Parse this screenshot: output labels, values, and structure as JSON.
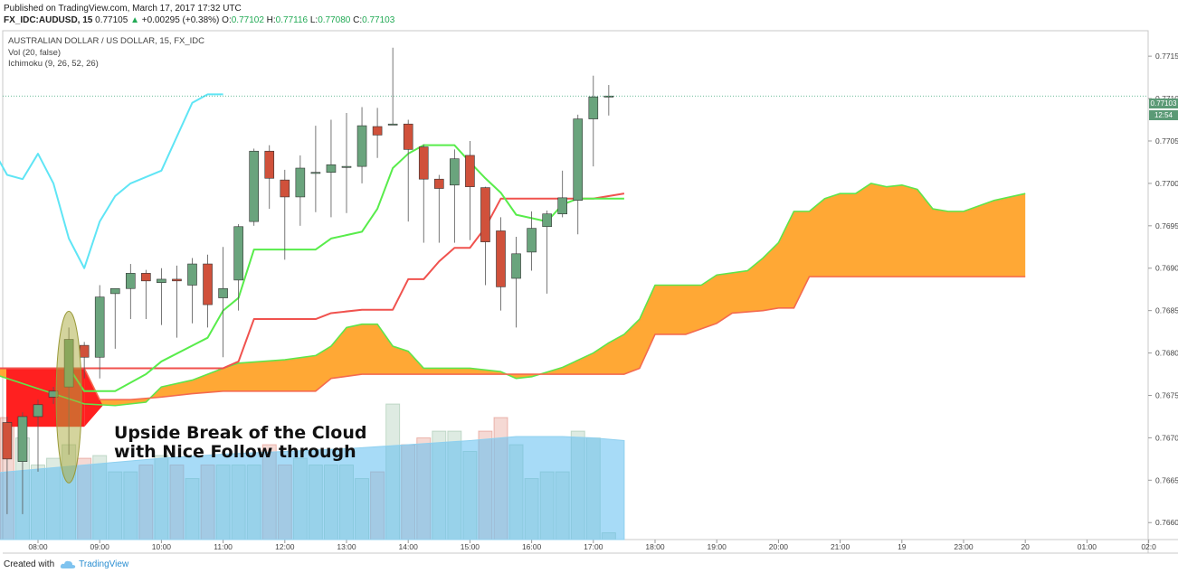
{
  "header": {
    "published": "Published on TradingView.com, March 17, 2017 17:32 UTC",
    "symbol": "FX_IDC:AUDUSD, 15",
    "last": "0.77105",
    "change_arrow": "▲",
    "change": "+0.00295 (+0.38%)",
    "o_label": "O:",
    "o": "0.77102",
    "h_label": "H:",
    "h": "0.77116",
    "l_label": "L:",
    "l": "0.77080",
    "c_label": "C:",
    "c": "0.77103"
  },
  "legend": {
    "title": "AUSTRALIAN DOLLAR / US DOLLAR, 15, FX_IDC",
    "vol": "Vol (20, false)",
    "ichimoku": "Ichimoku (9, 26, 52, 26)"
  },
  "annotation": [
    "Upside Break of the Cloud",
    "with Nice Follow through"
  ],
  "price_tag": {
    "value": "0.77103",
    "timer": "12:54"
  },
  "footer": {
    "created_with": "Created with",
    "brand": "TradingView",
    "logo_icon": "tradingview-cloud-icon"
  },
  "colors": {
    "bull": "#6aa47d",
    "bear": "#d0513b",
    "tenkan": "#58ec4b",
    "kijun": "#f0524e",
    "chikou": "#5fe5f5",
    "cloud_bull": "#ffa32a",
    "cloud_bear": "#ff2020",
    "vol_ma": "#8fd0ef",
    "price_line": "#3aa377"
  },
  "chart_data": {
    "type": "candlestick",
    "title": "AUSTRALIAN DOLLAR / US DOLLAR, 15, FX_IDC",
    "ylim": [
      0.7658,
      0.7718
    ],
    "y_ticks": [
      "0.77150",
      "0.77100",
      "0.77050",
      "0.77000",
      "0.76950",
      "0.76900",
      "0.76850",
      "0.76800",
      "0.76750",
      "0.76700",
      "0.76650",
      "0.76600"
    ],
    "x_ticks": [
      "08:00",
      "09:00",
      "10:00",
      "11:00",
      "12:00",
      "13:00",
      "14:00",
      "15:00",
      "16:00",
      "17:00",
      "18:00",
      "19:00",
      "20:00",
      "21:00",
      "19",
      "23:00",
      "20",
      "01:00",
      "02:0"
    ],
    "x_tick_hours": [
      8,
      9,
      10,
      11,
      12,
      13,
      14,
      15,
      16,
      17,
      18,
      19,
      20,
      21,
      22,
      23,
      24,
      25,
      26
    ],
    "candles": [
      {
        "t": 7.25,
        "o": 0.76716,
        "h": 0.76735,
        "l": 0.7668,
        "c": 0.76724
      },
      {
        "t": 7.5,
        "o": 0.76718,
        "h": 0.76725,
        "l": 0.7661,
        "c": 0.76675
      },
      {
        "t": 7.75,
        "o": 0.76672,
        "h": 0.7673,
        "l": 0.7661,
        "c": 0.76725
      },
      {
        "t": 8.0,
        "o": 0.76725,
        "h": 0.76745,
        "l": 0.7666,
        "c": 0.76739
      },
      {
        "t": 8.25,
        "o": 0.76748,
        "h": 0.7676,
        "l": 0.7674,
        "c": 0.76755
      },
      {
        "t": 8.5,
        "o": 0.7676,
        "h": 0.7683,
        "l": 0.7668,
        "c": 0.76816
      },
      {
        "t": 8.75,
        "o": 0.76809,
        "h": 0.76813,
        "l": 0.7677,
        "c": 0.76795
      },
      {
        "t": 9.0,
        "o": 0.76795,
        "h": 0.7688,
        "l": 0.7677,
        "c": 0.76866
      },
      {
        "t": 9.25,
        "o": 0.7687,
        "h": 0.76876,
        "l": 0.76805,
        "c": 0.76876
      },
      {
        "t": 9.5,
        "o": 0.76876,
        "h": 0.76905,
        "l": 0.7684,
        "c": 0.76894
      },
      {
        "t": 9.75,
        "o": 0.76894,
        "h": 0.76898,
        "l": 0.7684,
        "c": 0.76885
      },
      {
        "t": 10.0,
        "o": 0.76883,
        "h": 0.769,
        "l": 0.76833,
        "c": 0.76887
      },
      {
        "t": 10.25,
        "o": 0.76887,
        "h": 0.76903,
        "l": 0.76818,
        "c": 0.76885
      },
      {
        "t": 10.5,
        "o": 0.7688,
        "h": 0.76912,
        "l": 0.76835,
        "c": 0.76905
      },
      {
        "t": 10.75,
        "o": 0.76905,
        "h": 0.76916,
        "l": 0.7683,
        "c": 0.76857
      },
      {
        "t": 11.0,
        "o": 0.76865,
        "h": 0.76925,
        "l": 0.76795,
        "c": 0.76876
      },
      {
        "t": 11.25,
        "o": 0.76886,
        "h": 0.76952,
        "l": 0.7685,
        "c": 0.76949
      },
      {
        "t": 11.5,
        "o": 0.76955,
        "h": 0.77041,
        "l": 0.7695,
        "c": 0.77038
      },
      {
        "t": 11.75,
        "o": 0.77038,
        "h": 0.77045,
        "l": 0.7697,
        "c": 0.77006
      },
      {
        "t": 12.0,
        "o": 0.77004,
        "h": 0.77016,
        "l": 0.7691,
        "c": 0.76984
      },
      {
        "t": 12.25,
        "o": 0.76984,
        "h": 0.77033,
        "l": 0.7695,
        "c": 0.77018
      },
      {
        "t": 12.5,
        "o": 0.77013,
        "h": 0.77068,
        "l": 0.76966,
        "c": 0.77013
      },
      {
        "t": 12.75,
        "o": 0.77013,
        "h": 0.77075,
        "l": 0.7696,
        "c": 0.77022
      },
      {
        "t": 13.0,
        "o": 0.77019,
        "h": 0.77083,
        "l": 0.76965,
        "c": 0.7702
      },
      {
        "t": 13.25,
        "o": 0.7702,
        "h": 0.7709,
        "l": 0.77,
        "c": 0.77068
      },
      {
        "t": 13.5,
        "o": 0.77067,
        "h": 0.77089,
        "l": 0.7703,
        "c": 0.77057
      },
      {
        "t": 13.75,
        "o": 0.7707,
        "h": 0.7716,
        "l": 0.7707,
        "c": 0.7707
      },
      {
        "t": 14.0,
        "o": 0.7707,
        "h": 0.77075,
        "l": 0.76955,
        "c": 0.7704
      },
      {
        "t": 14.25,
        "o": 0.77043,
        "h": 0.77046,
        "l": 0.7693,
        "c": 0.77005
      },
      {
        "t": 14.5,
        "o": 0.77005,
        "h": 0.7701,
        "l": 0.7693,
        "c": 0.76994
      },
      {
        "t": 14.75,
        "o": 0.76998,
        "h": 0.7704,
        "l": 0.7693,
        "c": 0.77029
      },
      {
        "t": 15.0,
        "o": 0.77033,
        "h": 0.7705,
        "l": 0.76933,
        "c": 0.76996
      },
      {
        "t": 15.25,
        "o": 0.76995,
        "h": 0.76996,
        "l": 0.7688,
        "c": 0.76931
      },
      {
        "t": 15.5,
        "o": 0.76944,
        "h": 0.7696,
        "l": 0.7685,
        "c": 0.76878
      },
      {
        "t": 15.75,
        "o": 0.76888,
        "h": 0.76937,
        "l": 0.7683,
        "c": 0.76917
      },
      {
        "t": 16.0,
        "o": 0.76919,
        "h": 0.76967,
        "l": 0.76897,
        "c": 0.76947
      },
      {
        "t": 16.25,
        "o": 0.76949,
        "h": 0.76968,
        "l": 0.7687,
        "c": 0.76964
      },
      {
        "t": 16.5,
        "o": 0.76964,
        "h": 0.77015,
        "l": 0.7696,
        "c": 0.76983
      },
      {
        "t": 16.75,
        "o": 0.7698,
        "h": 0.77081,
        "l": 0.7694,
        "c": 0.77076
      },
      {
        "t": 17.0,
        "o": 0.77076,
        "h": 0.77127,
        "l": 0.7702,
        "c": 0.77102
      },
      {
        "t": 17.25,
        "o": 0.77102,
        "h": 0.77116,
        "l": 0.7708,
        "c": 0.77103
      }
    ],
    "volume": [
      {
        "t": 7.25,
        "v": 0.62,
        "up": true
      },
      {
        "t": 7.5,
        "v": 0.9,
        "up": false
      },
      {
        "t": 7.75,
        "v": 0.75,
        "up": true
      },
      {
        "t": 8.0,
        "v": 0.55,
        "up": true
      },
      {
        "t": 8.25,
        "v": 0.6,
        "up": true
      },
      {
        "t": 8.5,
        "v": 0.7,
        "up": true
      },
      {
        "t": 8.75,
        "v": 0.6,
        "up": false
      },
      {
        "t": 9.0,
        "v": 0.62,
        "up": true
      },
      {
        "t": 9.25,
        "v": 0.5,
        "up": true
      },
      {
        "t": 9.5,
        "v": 0.5,
        "up": true
      },
      {
        "t": 9.75,
        "v": 0.55,
        "up": false
      },
      {
        "t": 10.0,
        "v": 0.62,
        "up": true
      },
      {
        "t": 10.25,
        "v": 0.55,
        "up": false
      },
      {
        "t": 10.5,
        "v": 0.45,
        "up": true
      },
      {
        "t": 10.75,
        "v": 0.55,
        "up": false
      },
      {
        "t": 11.0,
        "v": 0.55,
        "up": true
      },
      {
        "t": 11.25,
        "v": 0.55,
        "up": true
      },
      {
        "t": 11.5,
        "v": 0.55,
        "up": true
      },
      {
        "t": 11.75,
        "v": 0.7,
        "up": false
      },
      {
        "t": 12.0,
        "v": 0.55,
        "up": false
      },
      {
        "t": 12.25,
        "v": 0.6,
        "up": true
      },
      {
        "t": 12.5,
        "v": 0.55,
        "up": true
      },
      {
        "t": 12.75,
        "v": 0.55,
        "up": true
      },
      {
        "t": 13.0,
        "v": 0.55,
        "up": true
      },
      {
        "t": 13.25,
        "v": 0.45,
        "up": true
      },
      {
        "t": 13.5,
        "v": 0.5,
        "up": false
      },
      {
        "t": 13.75,
        "v": 1.0,
        "up": true
      },
      {
        "t": 14.0,
        "v": 0.7,
        "up": false
      },
      {
        "t": 14.25,
        "v": 0.75,
        "up": false
      },
      {
        "t": 14.5,
        "v": 0.8,
        "up": true
      },
      {
        "t": 14.75,
        "v": 0.8,
        "up": true
      },
      {
        "t": 15.0,
        "v": 0.65,
        "up": true
      },
      {
        "t": 15.25,
        "v": 0.8,
        "up": false
      },
      {
        "t": 15.5,
        "v": 0.9,
        "up": false
      },
      {
        "t": 15.75,
        "v": 0.7,
        "up": true
      },
      {
        "t": 16.0,
        "v": 0.45,
        "up": true
      },
      {
        "t": 16.25,
        "v": 0.5,
        "up": true
      },
      {
        "t": 16.5,
        "v": 0.5,
        "up": true
      },
      {
        "t": 16.75,
        "v": 0.8,
        "up": true
      },
      {
        "t": 17.0,
        "v": 0.75,
        "up": true
      },
      {
        "t": 17.25,
        "v": 0.05,
        "up": true
      }
    ],
    "vol_ma": [
      {
        "t": 7.0,
        "v": 0.48
      },
      {
        "t": 8.0,
        "v": 0.52
      },
      {
        "t": 9.0,
        "v": 0.56
      },
      {
        "t": 10.0,
        "v": 0.6
      },
      {
        "t": 11.0,
        "v": 0.63
      },
      {
        "t": 12.0,
        "v": 0.65
      },
      {
        "t": 13.0,
        "v": 0.67
      },
      {
        "t": 14.0,
        "v": 0.7
      },
      {
        "t": 15.0,
        "v": 0.73
      },
      {
        "t": 15.75,
        "v": 0.76
      },
      {
        "t": 16.5,
        "v": 0.76
      },
      {
        "t": 17.0,
        "v": 0.75
      },
      {
        "t": 17.5,
        "v": 0.73
      }
    ],
    "tenkan": [
      [
        8.5,
        0.76783
      ],
      [
        8.75,
        0.76755
      ],
      [
        9.25,
        0.76755
      ],
      [
        9.75,
        0.76775
      ],
      [
        10.0,
        0.7679
      ],
      [
        10.75,
        0.76818
      ],
      [
        11.0,
        0.7685
      ],
      [
        11.25,
        0.76865
      ],
      [
        11.5,
        0.76922
      ],
      [
        11.75,
        0.76922
      ],
      [
        12.5,
        0.76922
      ],
      [
        12.75,
        0.76935
      ],
      [
        13.25,
        0.76943
      ],
      [
        13.5,
        0.7697
      ],
      [
        13.75,
        0.77018
      ],
      [
        14.0,
        0.77035
      ],
      [
        14.25,
        0.77045
      ],
      [
        14.75,
        0.77045
      ],
      [
        15.0,
        0.77025
      ],
      [
        15.25,
        0.77006
      ],
      [
        15.5,
        0.76989
      ],
      [
        15.75,
        0.76963
      ],
      [
        16.25,
        0.76955
      ],
      [
        16.5,
        0.76975
      ],
      [
        16.75,
        0.76982
      ],
      [
        17.5,
        0.76982
      ]
    ],
    "kijun": [
      [
        7.0,
        0.76798
      ],
      [
        7.25,
        0.76782
      ],
      [
        11.0,
        0.76782
      ],
      [
        11.25,
        0.7679
      ],
      [
        11.5,
        0.7684
      ],
      [
        12.5,
        0.7684
      ],
      [
        12.75,
        0.76847
      ],
      [
        13.25,
        0.76851
      ],
      [
        13.75,
        0.76851
      ],
      [
        14.0,
        0.76887
      ],
      [
        14.25,
        0.76887
      ],
      [
        14.5,
        0.76908
      ],
      [
        14.75,
        0.76924
      ],
      [
        15.0,
        0.76924
      ],
      [
        15.25,
        0.76948
      ],
      [
        15.5,
        0.76982
      ],
      [
        17.0,
        0.76982
      ],
      [
        17.5,
        0.76988
      ]
    ],
    "chikou": [
      [
        7.0,
        0.77075
      ],
      [
        7.5,
        0.7701
      ],
      [
        7.75,
        0.77005
      ],
      [
        8.0,
        0.77035
      ],
      [
        8.25,
        0.77
      ],
      [
        8.5,
        0.76935
      ],
      [
        8.75,
        0.769
      ],
      [
        9.0,
        0.76955
      ],
      [
        9.25,
        0.76985
      ],
      [
        9.5,
        0.77
      ],
      [
        10.0,
        0.77015
      ],
      [
        10.5,
        0.77095
      ],
      [
        10.75,
        0.77105
      ],
      [
        11.0,
        0.77105
      ]
    ],
    "senkou_a": [
      [
        7.0,
        0.76782
      ],
      [
        8.75,
        0.7674
      ],
      [
        9.25,
        0.76738
      ],
      [
        9.75,
        0.76742
      ],
      [
        10.0,
        0.7676
      ],
      [
        10.5,
        0.76768
      ],
      [
        11.0,
        0.76782
      ],
      [
        11.25,
        0.76788
      ],
      [
        12.0,
        0.76792
      ],
      [
        12.5,
        0.76797
      ],
      [
        12.75,
        0.76808
      ],
      [
        13.0,
        0.7683
      ],
      [
        13.25,
        0.76834
      ],
      [
        13.5,
        0.76834
      ],
      [
        13.75,
        0.76808
      ],
      [
        14.0,
        0.76802
      ],
      [
        14.25,
        0.76782
      ],
      [
        15.0,
        0.76782
      ],
      [
        15.5,
        0.76778
      ],
      [
        15.75,
        0.7677
      ],
      [
        16.0,
        0.76772
      ],
      [
        16.5,
        0.76783
      ],
      [
        17.0,
        0.768
      ],
      [
        17.25,
        0.76812
      ],
      [
        17.5,
        0.76822
      ],
      [
        17.75,
        0.7684
      ],
      [
        18.0,
        0.7688
      ],
      [
        18.75,
        0.7688
      ],
      [
        19.0,
        0.76892
      ],
      [
        19.5,
        0.76897
      ],
      [
        19.75,
        0.76912
      ],
      [
        20.0,
        0.7693
      ],
      [
        20.25,
        0.76967
      ],
      [
        20.5,
        0.76967
      ],
      [
        20.75,
        0.76982
      ],
      [
        21.0,
        0.76988
      ],
      [
        21.25,
        0.76988
      ],
      [
        21.5,
        0.77
      ],
      [
        21.75,
        0.76996
      ],
      [
        22.0,
        0.76998
      ],
      [
        22.25,
        0.76993
      ],
      [
        22.5,
        0.7697
      ],
      [
        22.75,
        0.76967
      ],
      [
        23.0,
        0.76967
      ],
      [
        23.5,
        0.7698
      ],
      [
        24.0,
        0.76988
      ]
    ],
    "senkou_b": [
      [
        7.0,
        0.76782
      ],
      [
        8.75,
        0.76782
      ],
      [
        9.0,
        0.76745
      ],
      [
        9.5,
        0.76745
      ],
      [
        10.0,
        0.76748
      ],
      [
        10.5,
        0.76752
      ],
      [
        11.0,
        0.76755
      ],
      [
        11.75,
        0.76755
      ],
      [
        12.5,
        0.76755
      ],
      [
        12.75,
        0.7677
      ],
      [
        13.25,
        0.76775
      ],
      [
        17.5,
        0.76775
      ],
      [
        17.75,
        0.76782
      ],
      [
        18.0,
        0.76822
      ],
      [
        18.5,
        0.76822
      ],
      [
        19.0,
        0.76835
      ],
      [
        19.25,
        0.76847
      ],
      [
        19.75,
        0.7685
      ],
      [
        20.0,
        0.76853
      ],
      [
        20.25,
        0.76853
      ],
      [
        20.5,
        0.7689
      ],
      [
        24.0,
        0.7689
      ]
    ]
  }
}
